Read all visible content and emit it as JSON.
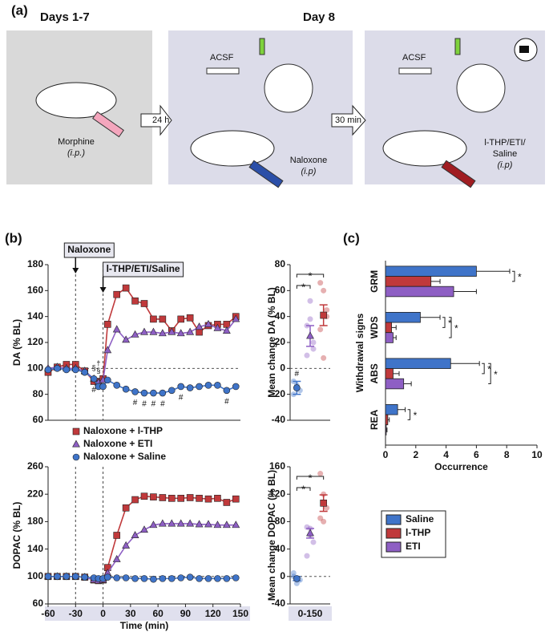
{
  "panels": {
    "a": "(a)",
    "b": "(b)",
    "c": "(c)"
  },
  "diagram": {
    "days_1_7": "Days 1-7",
    "day_8": "Day 8",
    "morphine": "Morphine",
    "morphine_route": "(i.p.)",
    "interval_1": "24 h",
    "acsf_1": "ACSF",
    "naloxone": "Naloxone",
    "naloxone_route": "(i.p)",
    "interval_2": "30 min",
    "acsf_2": "ACSF",
    "treatment_line1": "l-THP/ETI/",
    "treatment_line2": "Saline",
    "treatment_route": "(i.p)"
  },
  "chart_data": [
    {
      "type": "line",
      "ylabel": "DA (% BL)",
      "xlim": [
        -60,
        150
      ],
      "ylim": [
        60,
        180
      ],
      "yticks": [
        60,
        80,
        100,
        120,
        140,
        160,
        180
      ],
      "reference_line": 100,
      "events": [
        {
          "x": -30,
          "label": "Naloxone"
        },
        {
          "x": 0,
          "label": "l-THP/ETI/Saline"
        }
      ],
      "x": [
        -60,
        -50,
        -40,
        -30,
        -20,
        -10,
        -5,
        0,
        5,
        15,
        25,
        35,
        45,
        55,
        65,
        75,
        85,
        95,
        105,
        115,
        125,
        135,
        145
      ],
      "series": [
        {
          "name": "Naloxone + l-THP",
          "color": "#c0393b",
          "marker": "square",
          "values": [
            97,
            101,
            103,
            103,
            98,
            90,
            90,
            92,
            134,
            157,
            162,
            152,
            150,
            138,
            138,
            129,
            138,
            139,
            128,
            133,
            134,
            134,
            140
          ]
        },
        {
          "name": "Naloxone + ETI",
          "color": "#8e5fc4",
          "marker": "triangle",
          "values": [
            100,
            101,
            100,
            100,
            98,
            92,
            89,
            91,
            114,
            130,
            122,
            126,
            128,
            128,
            127,
            128,
            127,
            128,
            132,
            134,
            131,
            129,
            138
          ]
        },
        {
          "name": "Naloxone + Saline",
          "color": "#3f74c9",
          "marker": "circle",
          "values": [
            99,
            100,
            99,
            99,
            97,
            92,
            86,
            86,
            91,
            87,
            84,
            82,
            81,
            81,
            81,
            83,
            86,
            85,
            86,
            87,
            87,
            83,
            86
          ]
        }
      ],
      "hash_marks": {
        "label": "#",
        "x": [
          -10,
          35,
          45,
          55,
          65,
          85,
          135
        ]
      },
      "symbols": [
        {
          "label": "§",
          "x": -10
        },
        {
          "label": "§",
          "x": -5
        },
        {
          "label": "†",
          "x": -5
        }
      ],
      "legend": "below"
    },
    {
      "type": "dot",
      "ylabel": "Mean change DA (% BL)",
      "ylim": [
        -40,
        80
      ],
      "yticks": [
        -40,
        -20,
        0,
        20,
        40,
        60,
        80
      ],
      "reference_line": 0,
      "series": [
        {
          "color": "#3f74c9",
          "marker": "circle",
          "mean": -15,
          "error": 5,
          "points": [
            -10,
            -13,
            -17,
            -20,
            -14
          ],
          "annotation": "#"
        },
        {
          "color": "#8e5fc4",
          "marker": "triangle",
          "mean": 25,
          "error": 8,
          "points": [
            33,
            38,
            15,
            10,
            52,
            20
          ]
        },
        {
          "color": "#c0393b",
          "marker": "square",
          "mean": 41,
          "error": 8,
          "points": [
            66,
            60,
            45,
            30,
            8,
            40
          ]
        }
      ],
      "brackets": [
        {
          "label": "*",
          "pair": [
            0,
            2
          ]
        },
        {
          "label": "*",
          "pair": [
            0,
            1
          ]
        }
      ]
    },
    {
      "type": "line",
      "ylabel": "DOPAC (% BL)",
      "xlabel": "Time (min)",
      "xlim": [
        -60,
        150
      ],
      "xticks": [
        -60,
        -30,
        0,
        30,
        60,
        90,
        120,
        150
      ],
      "ylim": [
        60,
        260
      ],
      "yticks": [
        60,
        100,
        140,
        180,
        220,
        260
      ],
      "reference_line": 100,
      "x": [
        -60,
        -50,
        -40,
        -30,
        -20,
        -10,
        -5,
        0,
        5,
        15,
        25,
        35,
        45,
        55,
        65,
        75,
        85,
        95,
        105,
        115,
        125,
        135,
        145
      ],
      "series": [
        {
          "color": "#c0393b",
          "marker": "square",
          "values": [
            100,
            100,
            100,
            100,
            99,
            95,
            94,
            95,
            113,
            160,
            200,
            212,
            217,
            216,
            215,
            214,
            214,
            215,
            214,
            213,
            214,
            208,
            213
          ]
        },
        {
          "color": "#8e5fc4",
          "marker": "triangle",
          "values": [
            100,
            100,
            100,
            100,
            99,
            95,
            94,
            95,
            105,
            125,
            145,
            160,
            168,
            175,
            177,
            177,
            177,
            177,
            176,
            176,
            175,
            175,
            175
          ]
        },
        {
          "color": "#3f74c9",
          "marker": "circle",
          "values": [
            100,
            100,
            100,
            100,
            99,
            98,
            97,
            97,
            99,
            98,
            98,
            97,
            97,
            96,
            97,
            97,
            98,
            99,
            97,
            97,
            97,
            97,
            98
          ]
        }
      ]
    },
    {
      "type": "dot",
      "ylabel": "Mean change DOPAC (% BL)",
      "categories": [
        "0-150"
      ],
      "ylim": [
        -40,
        160
      ],
      "yticks": [
        -40,
        0,
        40,
        80,
        120,
        160
      ],
      "reference_line": 0,
      "series": [
        {
          "color": "#3f74c9",
          "marker": "circle",
          "mean": -3,
          "error": 3,
          "points": [
            5,
            -10,
            -5,
            0,
            -5
          ]
        },
        {
          "color": "#8e5fc4",
          "marker": "triangle",
          "mean": 63,
          "error": 7,
          "points": [
            72,
            60,
            50,
            30,
            70
          ]
        },
        {
          "color": "#c0393b",
          "marker": "square",
          "mean": 107,
          "error": 12,
          "points": [
            150,
            120,
            100,
            85,
            80
          ]
        }
      ],
      "brackets": [
        {
          "label": "*",
          "pair": [
            0,
            2
          ]
        },
        {
          "label": "*",
          "pair": [
            0,
            1
          ]
        }
      ]
    },
    {
      "type": "hbar",
      "ylabel": "Withdrawal signs",
      "xlabel": "Occurrence",
      "categories": [
        "GRM",
        "WDS",
        "ABS",
        "REA"
      ],
      "xlim": [
        0,
        10
      ],
      "xticks": [
        0,
        2,
        4,
        6,
        8,
        10
      ],
      "series": [
        {
          "name": "Saline",
          "color": "#3f74c9",
          "values": [
            6,
            2.3,
            4.3,
            0.8
          ],
          "errors": [
            2.2,
            1.3,
            1.9,
            0.5
          ]
        },
        {
          "name": "l-THP",
          "color": "#c0393b",
          "values": [
            3,
            0.4,
            0.5,
            0.15
          ],
          "errors": [
            0.6,
            0.3,
            0.4,
            0.1
          ]
        },
        {
          "name": "ETI",
          "color": "#8e5fc4",
          "values": [
            4.5,
            0.5,
            1.2,
            0.05
          ],
          "errors": [
            1.5,
            0.2,
            0.5,
            0.05
          ]
        }
      ],
      "brackets": [
        {
          "label": "*",
          "pairs": [
            [
              0,
              1
            ]
          ]
        },
        {
          "label": "*",
          "pairs": [
            [
              0,
              1
            ],
            [
              0,
              2
            ]
          ]
        },
        {
          "label": "*",
          "pairs": [
            [
              0,
              1
            ],
            [
              0,
              2
            ]
          ]
        },
        {
          "label": "*",
          "pairs": [
            [
              0,
              1
            ]
          ]
        }
      ]
    }
  ]
}
